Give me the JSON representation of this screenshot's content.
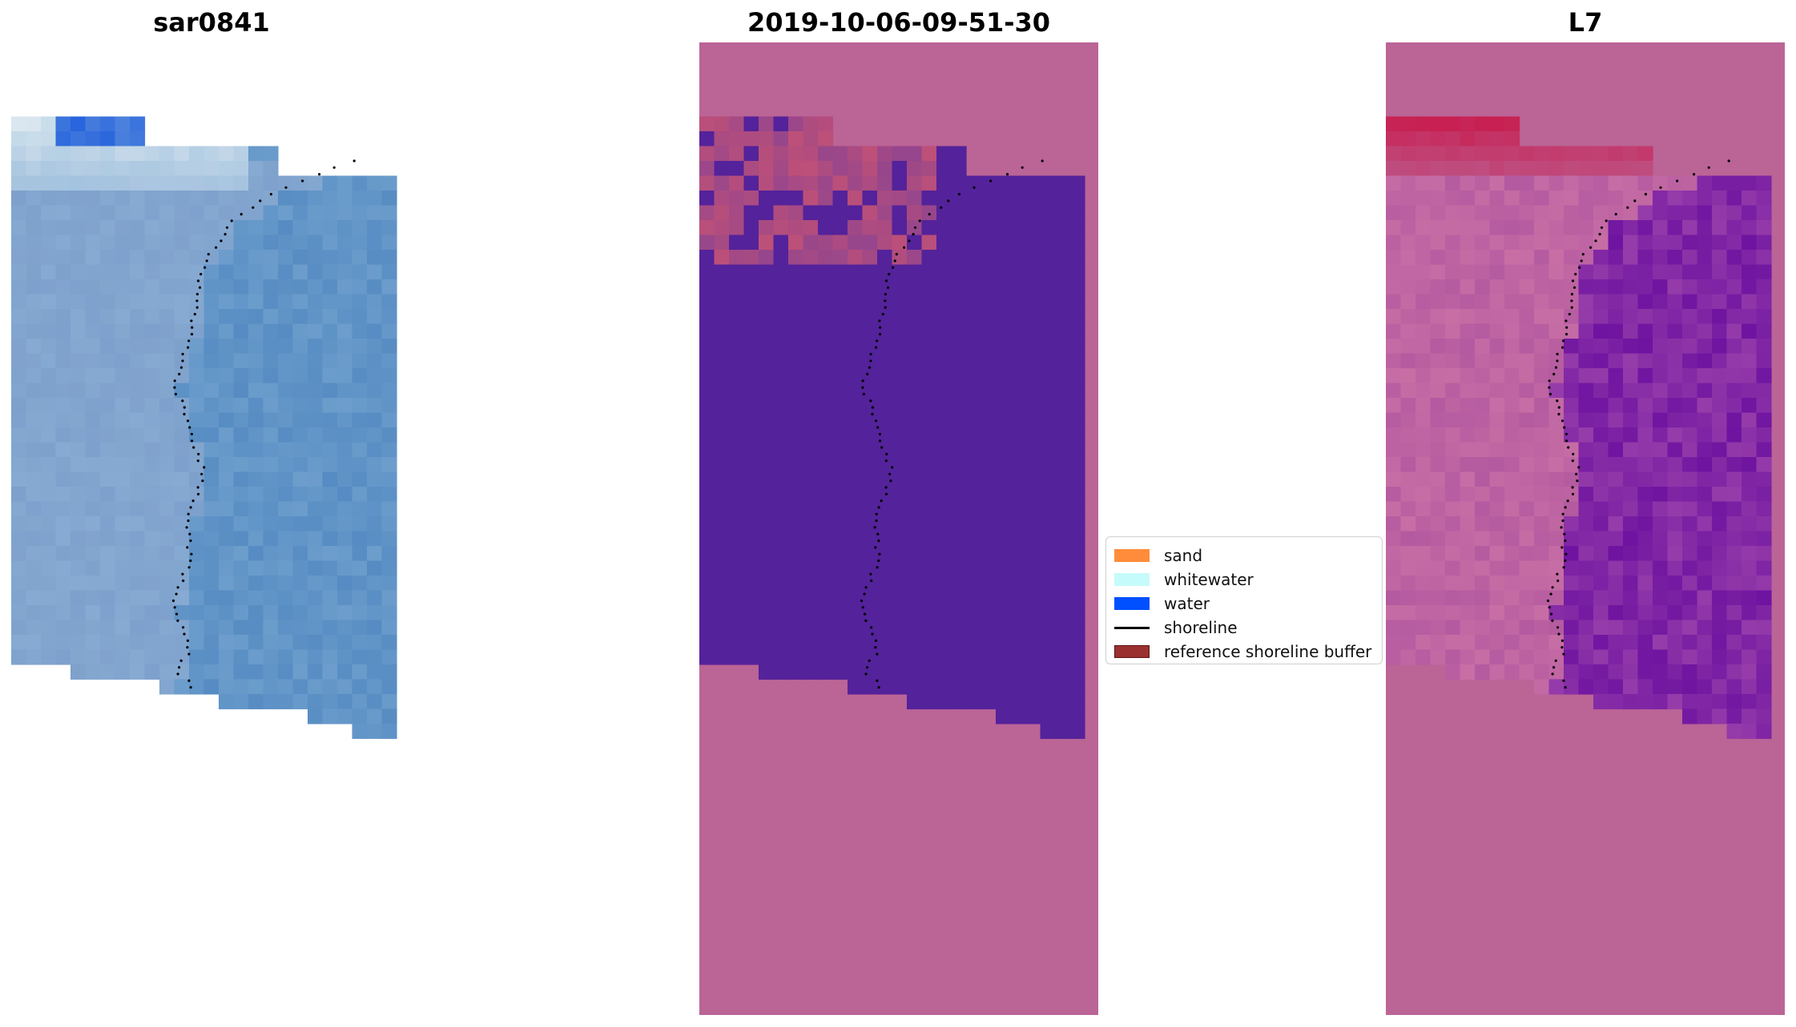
{
  "panels": [
    {
      "title": "sar0841"
    },
    {
      "title": "2019-10-06-09-51-30"
    },
    {
      "title": "L7"
    }
  ],
  "legend": {
    "items": [
      {
        "label": "sand",
        "color": "#ff8c3a"
      },
      {
        "label": "whitewater",
        "color": "#c6fbfb"
      },
      {
        "label": "water",
        "color": "#0050ff"
      },
      {
        "label": "shoreline",
        "color": "#000000"
      },
      {
        "label": "reference shoreline buffer",
        "color": "#9b3030"
      }
    ]
  },
  "colors": {
    "rgb_water": "#5a8ec3",
    "rgb_land": "#7e9ec9",
    "classified_water": "#54229a",
    "classified_nodata": "#bb6496",
    "index_water": "#6a0c9a",
    "index_land": "#b560a1",
    "index_high": "#c1062c"
  }
}
